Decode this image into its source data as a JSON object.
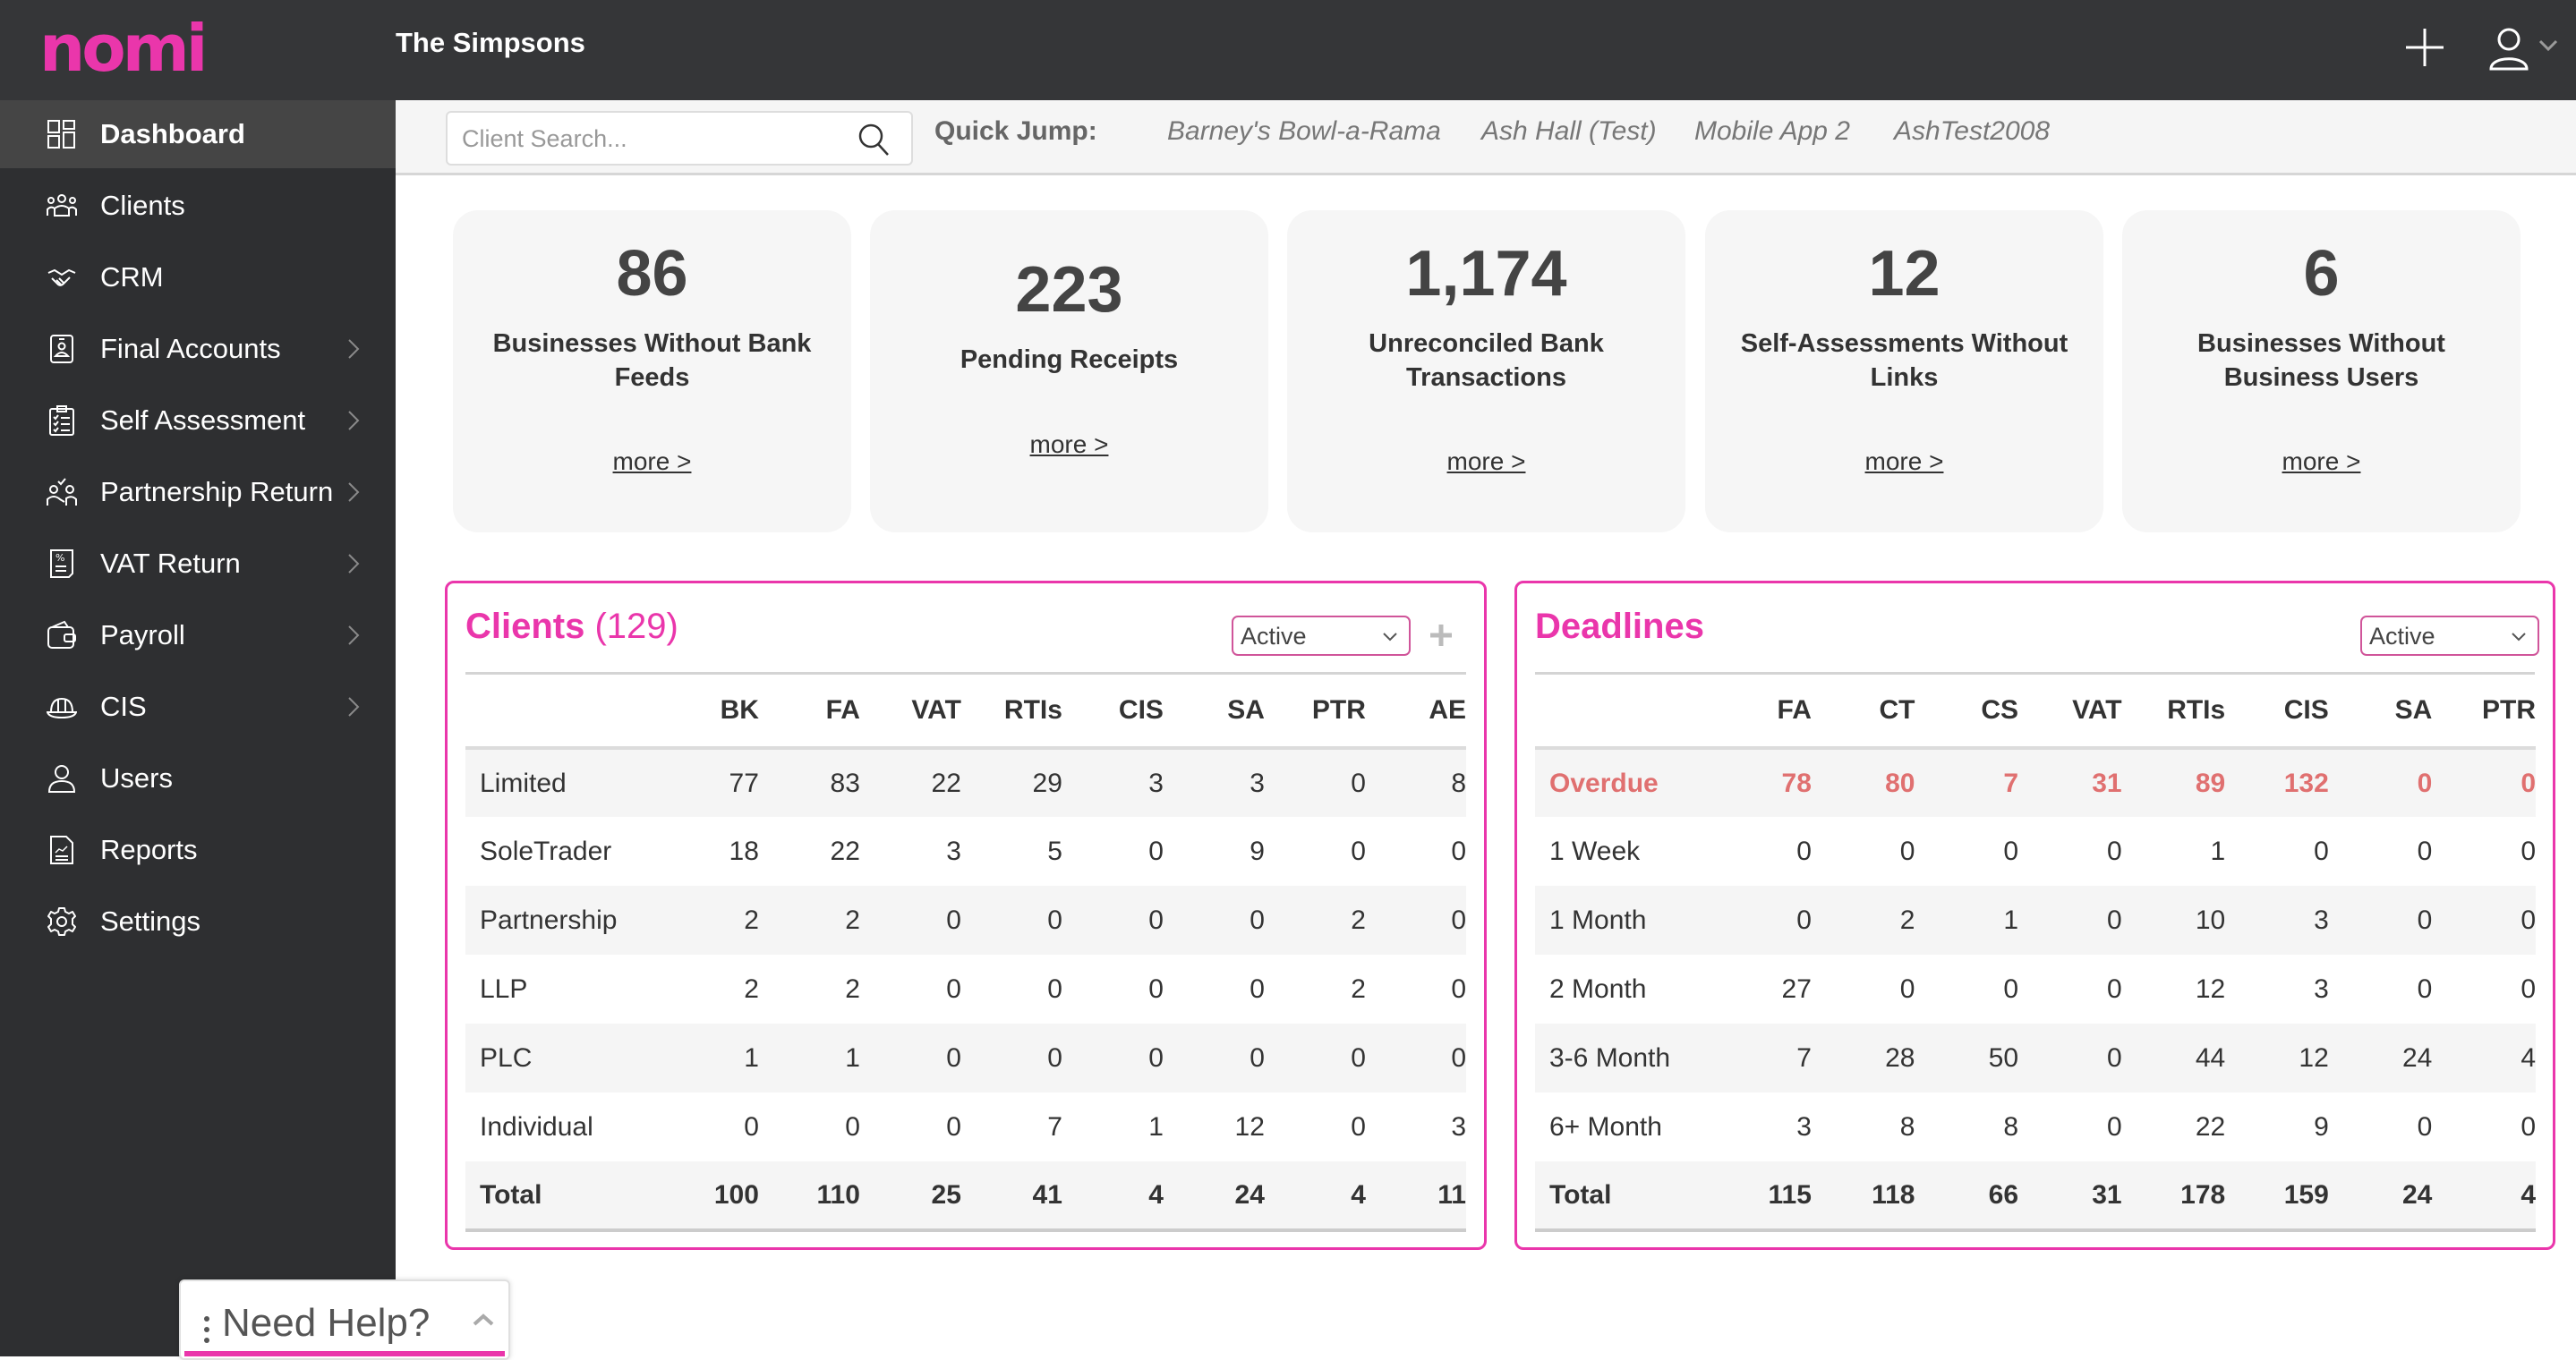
{
  "header": {
    "logo": "nomi",
    "title": "The Simpsons",
    "add_icon": "plus-icon",
    "user_icon": "user-icon",
    "user_menu_icon": "chevron-down-icon"
  },
  "colors": {
    "brand": "#ea36ab",
    "header_bg": "#353638",
    "sidebar_bg": "#2e2f31",
    "sidebar_active": "#454545",
    "overdue": "#e07070",
    "card_bg": "#f6f6f6"
  },
  "sidebar": {
    "items": [
      {
        "label": "Dashboard",
        "icon": "dashboard-grid-icon",
        "active": true,
        "has_submenu": false
      },
      {
        "label": "Clients",
        "icon": "clients-group-icon",
        "active": false,
        "has_submenu": false
      },
      {
        "label": "CRM",
        "icon": "handshake-icon",
        "active": false,
        "has_submenu": false
      },
      {
        "label": "Final Accounts",
        "icon": "id-badge-icon",
        "active": false,
        "has_submenu": true
      },
      {
        "label": "Self Assessment",
        "icon": "clipboard-checklist-icon",
        "active": false,
        "has_submenu": true
      },
      {
        "label": "Partnership Return",
        "icon": "partners-icon",
        "active": false,
        "has_submenu": true
      },
      {
        "label": "VAT Return",
        "icon": "percent-document-icon",
        "active": false,
        "has_submenu": true
      },
      {
        "label": "Payroll",
        "icon": "wallet-icon",
        "active": false,
        "has_submenu": true
      },
      {
        "label": "CIS",
        "icon": "hard-hat-icon",
        "active": false,
        "has_submenu": true
      },
      {
        "label": "Users",
        "icon": "user-icon",
        "active": false,
        "has_submenu": false
      },
      {
        "label": "Reports",
        "icon": "report-document-icon",
        "active": false,
        "has_submenu": false
      },
      {
        "label": "Settings",
        "icon": "gear-icon",
        "active": false,
        "has_submenu": false
      }
    ]
  },
  "topbar": {
    "search_placeholder": "Client Search...",
    "search_value": "",
    "quick_jump_label": "Quick Jump:",
    "quick_jump_links": [
      "Barney's Bowl-a-Rama",
      "Ash Hall (Test)",
      "Mobile App 2",
      "AshTest2008"
    ]
  },
  "stats": [
    {
      "value": "86",
      "label": "Businesses Without Bank Feeds",
      "link": "more >"
    },
    {
      "value": "223",
      "label": "Pending Receipts",
      "link": "more >"
    },
    {
      "value": "1,174",
      "label": "Unreconciled Bank Transactions",
      "link": "more >"
    },
    {
      "value": "12",
      "label": "Self-Assessments Without Links",
      "link": "more >"
    },
    {
      "value": "6",
      "label": "Businesses Without Business Users",
      "link": "more >"
    }
  ],
  "clients_panel": {
    "title": "Clients",
    "count": "(129)",
    "filter": "Active",
    "columns": [
      "",
      "BK",
      "FA",
      "VAT",
      "RTIs",
      "CIS",
      "SA",
      "PTR",
      "AE"
    ],
    "rows": [
      [
        "Limited",
        "77",
        "83",
        "22",
        "29",
        "3",
        "3",
        "0",
        "8"
      ],
      [
        "SoleTrader",
        "18",
        "22",
        "3",
        "5",
        "0",
        "9",
        "0",
        "0"
      ],
      [
        "Partnership",
        "2",
        "2",
        "0",
        "0",
        "0",
        "0",
        "2",
        "0"
      ],
      [
        "LLP",
        "2",
        "2",
        "0",
        "0",
        "0",
        "0",
        "2",
        "0"
      ],
      [
        "PLC",
        "1",
        "1",
        "0",
        "0",
        "0",
        "0",
        "0",
        "0"
      ],
      [
        "Individual",
        "0",
        "0",
        "0",
        "7",
        "1",
        "12",
        "0",
        "3"
      ]
    ],
    "total": [
      "Total",
      "100",
      "110",
      "25",
      "41",
      "4",
      "24",
      "4",
      "11"
    ]
  },
  "deadlines_panel": {
    "title": "Deadlines",
    "filter": "Active",
    "columns": [
      "",
      "FA",
      "CT",
      "CS",
      "VAT",
      "RTIs",
      "CIS",
      "SA",
      "PTR"
    ],
    "overdue": [
      "Overdue",
      "78",
      "80",
      "7",
      "31",
      "89",
      "132",
      "0",
      "0"
    ],
    "rows": [
      [
        "1 Week",
        "0",
        "0",
        "0",
        "0",
        "1",
        "0",
        "0",
        "0"
      ],
      [
        "1 Month",
        "0",
        "2",
        "1",
        "0",
        "10",
        "3",
        "0",
        "0"
      ],
      [
        "2 Month",
        "27",
        "0",
        "0",
        "0",
        "12",
        "3",
        "0",
        "0"
      ],
      [
        "3-6 Month",
        "7",
        "28",
        "50",
        "0",
        "44",
        "12",
        "24",
        "4"
      ],
      [
        "6+ Month",
        "3",
        "8",
        "8",
        "0",
        "22",
        "9",
        "0",
        "0"
      ]
    ],
    "total": [
      "Total",
      "115",
      "118",
      "66",
      "31",
      "178",
      "159",
      "24",
      "4"
    ]
  },
  "help_widget": {
    "label": "Need Help?"
  }
}
